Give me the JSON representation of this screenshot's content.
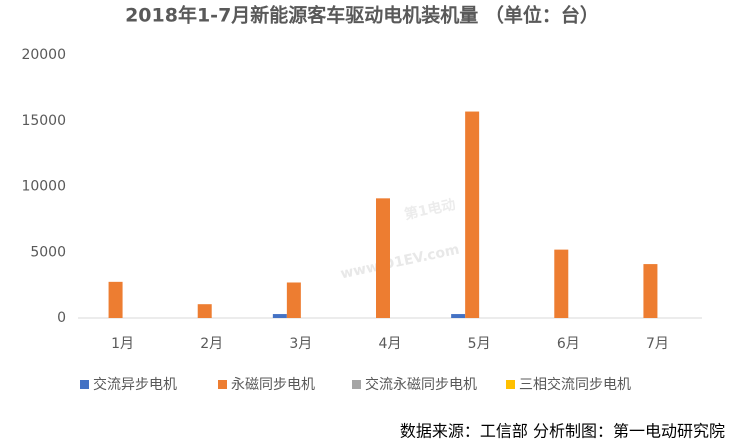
{
  "chart_data": {
    "type": "bar",
    "title": "2018年1-7月新能源客车驱动电机装机量 （单位：台）",
    "categories": [
      "1月",
      "2月",
      "3月",
      "4月",
      "5月",
      "6月",
      "7月"
    ],
    "series": [
      {
        "name": "交流异步电机",
        "color": "#4472c4",
        "values": [
          0,
          0,
          300,
          0,
          300,
          0,
          0
        ]
      },
      {
        "name": "永磁同步电机",
        "color": "#ed7d31",
        "values": [
          2750,
          1050,
          2700,
          9100,
          15700,
          5200,
          4100
        ]
      },
      {
        "name": "交流永磁同步电机",
        "color": "#a5a5a5",
        "values": [
          0,
          0,
          0,
          0,
          0,
          0,
          0
        ]
      },
      {
        "name": "三相交流同步电机",
        "color": "#ffc000",
        "values": [
          0,
          0,
          0,
          0,
          0,
          0,
          0
        ]
      }
    ],
    "ylim": [
      0,
      20000
    ],
    "yticks": [
      0,
      5000,
      10000,
      15000,
      20000
    ],
    "grid": false,
    "legend": "bottom",
    "source": "数据来源：工信部 分析制图：第一电动研究院"
  },
  "watermark": {
    "logo": "第1电动",
    "url": "www.D1EV.com"
  }
}
